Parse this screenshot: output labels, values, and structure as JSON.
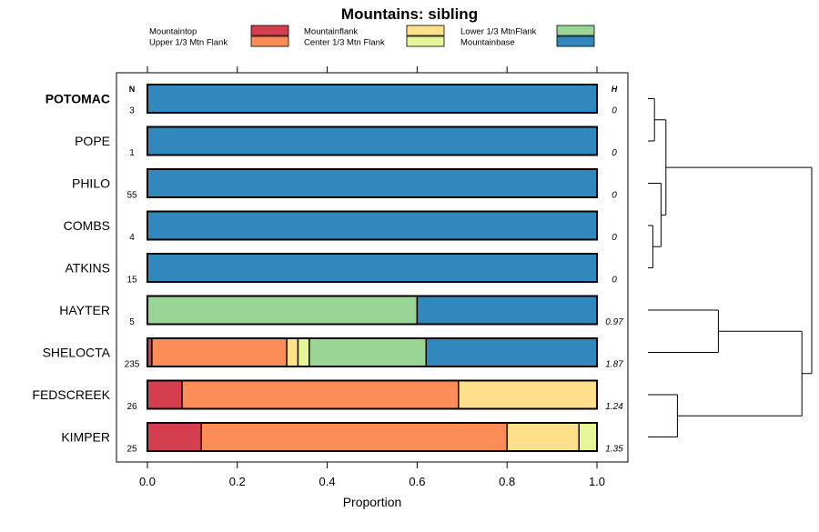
{
  "chart_data": {
    "type": "bar",
    "orientation": "horizontal",
    "stacked": true,
    "title": "Mountains: sibling",
    "xlabel": "Proportion",
    "xlim": [
      0,
      1
    ],
    "xticks": [
      "0.0",
      "0.2",
      "0.4",
      "0.6",
      "0.8",
      "1.0"
    ],
    "xtick_values": [
      0,
      0.2,
      0.4,
      0.6,
      0.8,
      1.0
    ],
    "n_header": "N",
    "h_header": "H",
    "legend_position": "top",
    "legend": [
      {
        "name": "Mountaintop",
        "color": "#d53e4f"
      },
      {
        "name": "Upper 1/3 Mtn Flank",
        "color": "#fc8d59"
      },
      {
        "name": "Mountainflank",
        "color": "#fee08b"
      },
      {
        "name": "Center 1/3 Mtn Flank",
        "color": "#e6f598"
      },
      {
        "name": "Lower 1/3 MtnFlank",
        "color": "#99d594"
      },
      {
        "name": "Mountainbase",
        "color": "#3288bd"
      }
    ],
    "categories": [
      {
        "label": "POTOMAC",
        "bold": true,
        "n": "3",
        "h": "0",
        "values": [
          0,
          0,
          0,
          0,
          0,
          1.0
        ]
      },
      {
        "label": "POPE",
        "bold": false,
        "n": "1",
        "h": "0",
        "values": [
          0,
          0,
          0,
          0,
          0,
          1.0
        ]
      },
      {
        "label": "PHILO",
        "bold": false,
        "n": "55",
        "h": "0",
        "values": [
          0,
          0,
          0,
          0,
          0,
          1.0
        ]
      },
      {
        "label": "COMBS",
        "bold": false,
        "n": "4",
        "h": "0",
        "values": [
          0,
          0,
          0,
          0,
          0,
          1.0
        ]
      },
      {
        "label": "ATKINS",
        "bold": false,
        "n": "15",
        "h": "0",
        "values": [
          0,
          0,
          0,
          0,
          0,
          1.0
        ]
      },
      {
        "label": "HAYTER",
        "bold": false,
        "n": "5",
        "h": "0.97",
        "values": [
          0,
          0,
          0,
          0,
          0.6,
          0.4
        ]
      },
      {
        "label": "SHELOCTA",
        "bold": false,
        "n": "235",
        "h": "1.87",
        "values": [
          0.01,
          0.3,
          0.025,
          0.025,
          0.26,
          0.38
        ]
      },
      {
        "label": "FEDSCREEK",
        "bold": false,
        "n": "26",
        "h": "1.24",
        "values": [
          0.077,
          0.615,
          0.308,
          0,
          0,
          0
        ]
      },
      {
        "label": "KIMPER",
        "bold": false,
        "n": "25",
        "h": "1.35",
        "values": [
          0.12,
          0.68,
          0.16,
          0.04,
          0,
          0
        ]
      }
    ],
    "dendrogram": {
      "note": "hierarchical clustering of rows; merge heights in relative units (0 = leaf, 1 = root)",
      "merges": [
        {
          "id": "m1",
          "children": [
            "POTOMAC",
            "POPE"
          ],
          "height": 0.04
        },
        {
          "id": "m2",
          "children": [
            "COMBS",
            "ATKINS"
          ],
          "height": 0.03
        },
        {
          "id": "m3",
          "children": [
            "PHILO",
            "m2"
          ],
          "height": 0.08
        },
        {
          "id": "m4",
          "children": [
            "m1",
            "m3"
          ],
          "height": 0.11
        },
        {
          "id": "m5",
          "children": [
            "HAYTER",
            "SHELOCTA"
          ],
          "height": 0.43
        },
        {
          "id": "m6",
          "children": [
            "FEDSCREEK",
            "KIMPER"
          ],
          "height": 0.18
        },
        {
          "id": "m7",
          "children": [
            "m5",
            "m6"
          ],
          "height": 0.94
        },
        {
          "id": "m8",
          "children": [
            "m4",
            "m7"
          ],
          "height": 1.0
        }
      ]
    }
  }
}
